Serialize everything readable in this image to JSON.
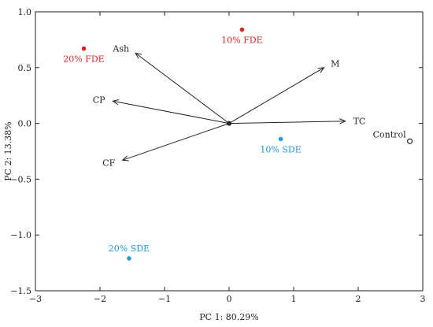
{
  "chart_data": {
    "type": "scatter",
    "xlabel": "PC 1: 80.29%",
    "ylabel": "PC 2: 13.38%",
    "xlim": [
      -3,
      3
    ],
    "ylim": [
      -1.5,
      1.0
    ],
    "x_ticks": [
      {
        "value": -3,
        "label": "−3"
      },
      {
        "value": -2,
        "label": "−2"
      },
      {
        "value": -1,
        "label": "−1"
      },
      {
        "value": 0,
        "label": "0"
      },
      {
        "value": 1,
        "label": "1"
      },
      {
        "value": 2,
        "label": "2"
      },
      {
        "value": 3,
        "label": "3"
      }
    ],
    "y_ticks": [
      {
        "value": 1.0,
        "label": "1.0"
      },
      {
        "value": 0.5,
        "label": "0.5"
      },
      {
        "value": 0.0,
        "label": "0.0"
      },
      {
        "value": -0.5,
        "label": "−0.5"
      },
      {
        "value": -1.0,
        "label": "−1.0"
      },
      {
        "value": -1.5,
        "label": "−1.5"
      }
    ],
    "grid": false,
    "points": [
      {
        "label": "20% FDE",
        "x": -2.25,
        "y": 0.67,
        "color": "#d62728",
        "marker": "filled"
      },
      {
        "label": "10% FDE",
        "x": 0.2,
        "y": 0.84,
        "color": "#d62728",
        "marker": "filled"
      },
      {
        "label": "10% SDE",
        "x": 0.8,
        "y": -0.14,
        "color": "#1f9ad6",
        "marker": "filled"
      },
      {
        "label": "20% SDE",
        "x": -1.55,
        "y": -1.21,
        "color": "#1f9ad6",
        "marker": "filled"
      },
      {
        "label": "Control",
        "x": 2.8,
        "y": -0.16,
        "color": "#222222",
        "marker": "hollow"
      }
    ],
    "origin": {
      "x": 0,
      "y": 0
    },
    "vectors": [
      {
        "label": "Ash",
        "x": -1.45,
        "y": 0.63
      },
      {
        "label": "M",
        "x": 1.47,
        "y": 0.5
      },
      {
        "label": "CP",
        "x": -1.8,
        "y": 0.2
      },
      {
        "label": "TC",
        "x": 1.8,
        "y": 0.02
      },
      {
        "label": "CF",
        "x": -1.65,
        "y": -0.33
      }
    ]
  }
}
